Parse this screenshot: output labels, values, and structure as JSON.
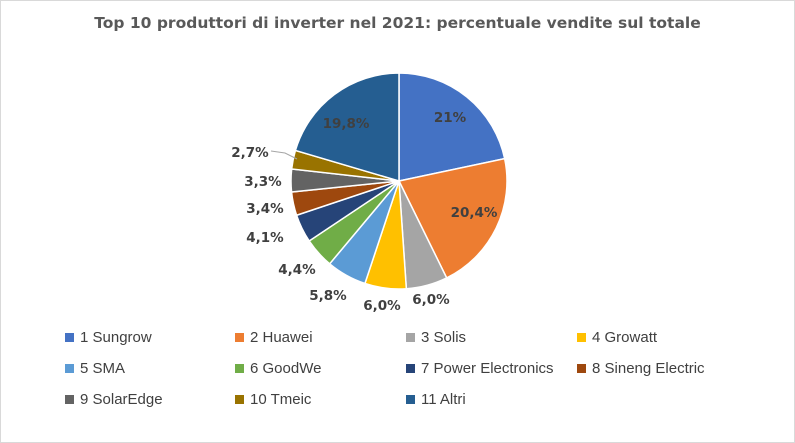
{
  "chart_data": {
    "type": "pie",
    "title": "Top 10 produttori di inverter nel 2021: percentuale vendite sul totale",
    "categories": [
      "1 Sungrow",
      "2 Huawei",
      "3 Solis",
      "4 Growatt",
      "5 SMA",
      "6 GoodWe",
      "7 Power Electronics",
      "8 Sineng Electric",
      "9 SolarEdge",
      "10 Tmeic",
      "11 Altri"
    ],
    "values": [
      21,
      20.4,
      6.0,
      6.0,
      5.8,
      4.4,
      4.1,
      3.4,
      3.3,
      2.7,
      19.8
    ],
    "data_labels": [
      "21%",
      "20,4%",
      "6,0%",
      "6,0%",
      "5,8%",
      "4,4%",
      "4,1%",
      "3,4%",
      "3,3%",
      "2,7%",
      "19,8%"
    ],
    "colors": [
      "#4472C4",
      "#ED7D31",
      "#A5A5A5",
      "#FFC000",
      "#5B9BD5",
      "#70AD47",
      "#264478",
      "#9E480E",
      "#636363",
      "#997300",
      "#255E91"
    ],
    "legend_position": "bottom"
  }
}
